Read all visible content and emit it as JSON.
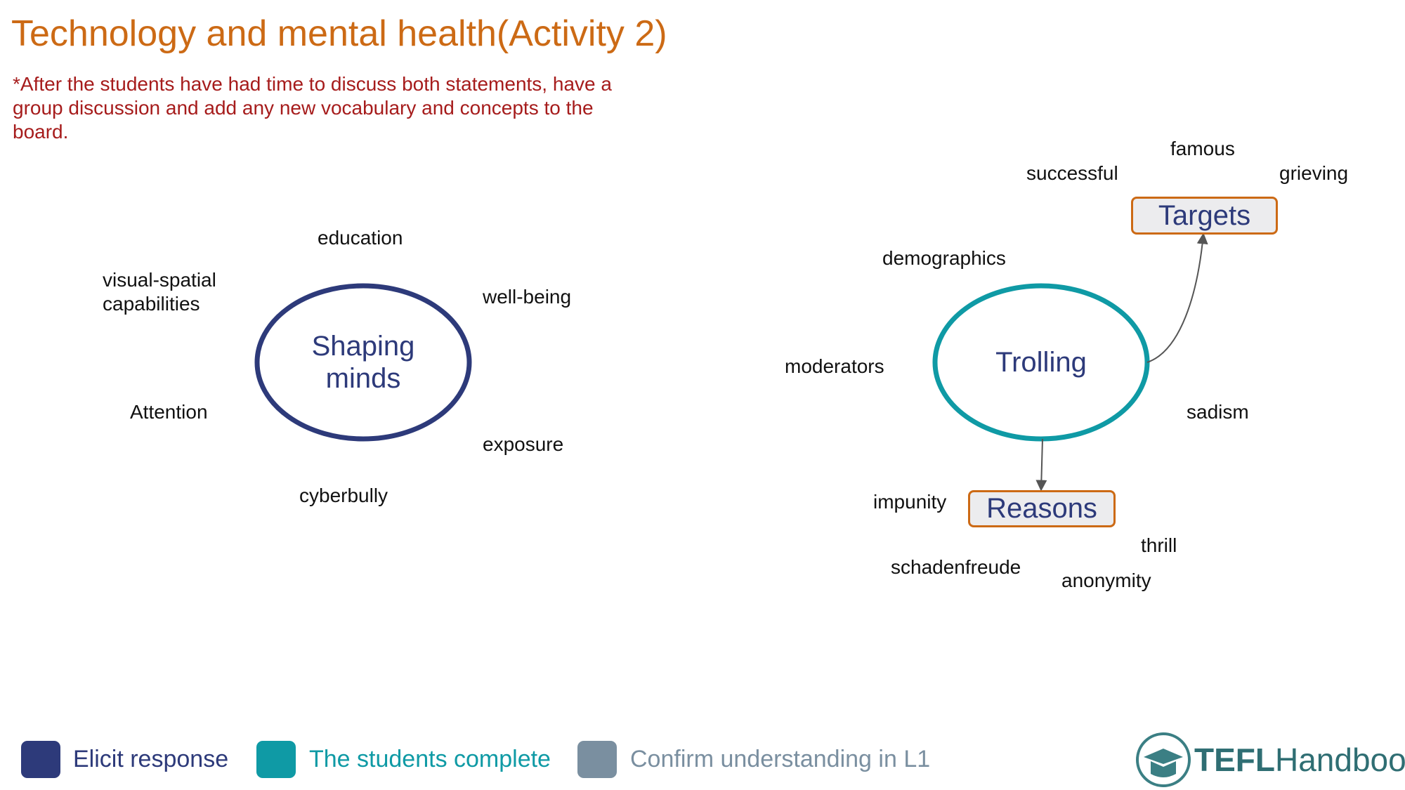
{
  "slide": {
    "title": "Technology and mental health(Activity 2)",
    "note": "*After the students have had time to discuss both statements, have a group discussion and add any new vocabulary and concepts to the board."
  },
  "left_map": {
    "center": "Shaping minds",
    "center_line1": "Shaping",
    "center_line2": "minds",
    "words": {
      "education": "education",
      "visual_line1": "visual-spatial",
      "visual_line2": "capabilities",
      "wellbeing": "well-being",
      "attention": "Attention",
      "exposure": "exposure",
      "cyberbully": "cyberbully"
    }
  },
  "right_map": {
    "center": "Trolling",
    "targets_label": "Targets",
    "reasons_label": "Reasons",
    "words": {
      "famous": "famous",
      "successful": "successful",
      "grieving": "grieving",
      "demographics": "demographics",
      "moderators": "moderators",
      "sadism": "sadism",
      "impunity": "impunity",
      "thrill": "thrill",
      "schadenfreude": "schadenfreude",
      "anonymity": "anonymity"
    }
  },
  "legend": [
    {
      "label": "Elicit response",
      "color": "#2d3a7a"
    },
    {
      "label": "The students complete",
      "color": "#0f9aa5"
    },
    {
      "label": "Confirm understanding in L1",
      "color": "#7a8fa0"
    }
  ],
  "logo": {
    "bold": "TEFL",
    "rest": "Handbook"
  },
  "colors": {
    "accent_orange": "#cc6a15",
    "navy": "#2d3a7a",
    "teal": "#0f9aa5",
    "grey": "#7a8fa0",
    "note_red": "#a61c1c"
  }
}
